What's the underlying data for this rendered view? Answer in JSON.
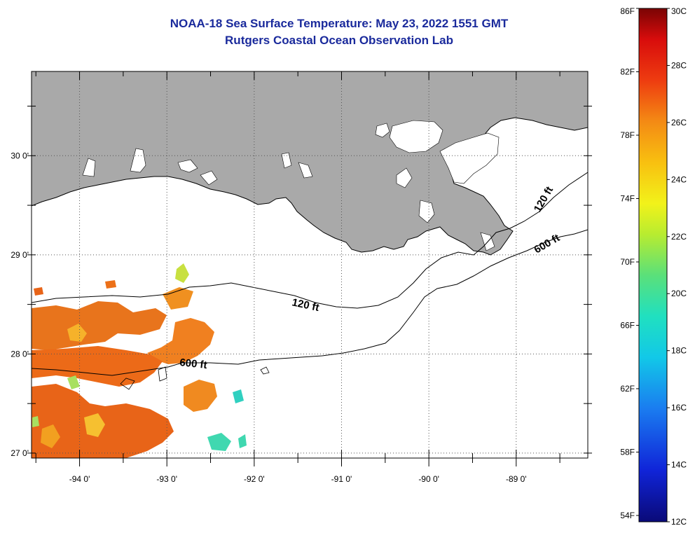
{
  "header": {
    "title": "NOAA-18 Sea Surface Temperature:  May 23, 2022 1551 GMT",
    "subtitle": "Rutgers Coastal Ocean Observation Lab"
  },
  "map": {
    "lon_range": [
      -94.55,
      -88.18
    ],
    "lat_range": [
      26.95,
      30.85
    ],
    "lon_ticks": [
      -94,
      -93,
      -92,
      -91,
      -90,
      -89
    ],
    "lat_ticks": [
      27,
      28,
      29,
      30
    ],
    "lon_labels": [
      "-94 0'",
      "-93 0'",
      "-92 0'",
      "-91 0'",
      "-90 0'",
      "-89 0'"
    ],
    "lat_labels": [
      "27 0'",
      "28 0'",
      "29 0'",
      "30 0'"
    ],
    "land_color": "#a9a9a9",
    "gridlines": "dotted",
    "contours": [
      {
        "label": "120 ft"
      },
      {
        "label": "600 ft"
      }
    ]
  },
  "colorbar": {
    "celsius_labels": [
      "30C",
      "28C",
      "26C",
      "24C",
      "22C",
      "20C",
      "18C",
      "16C",
      "14C",
      "12C"
    ],
    "fahrenheit_labels": [
      "86F",
      "82F",
      "78F",
      "74F",
      "70F",
      "66F",
      "62F",
      "58F",
      "54F"
    ],
    "range_c": [
      12,
      30
    ]
  }
}
